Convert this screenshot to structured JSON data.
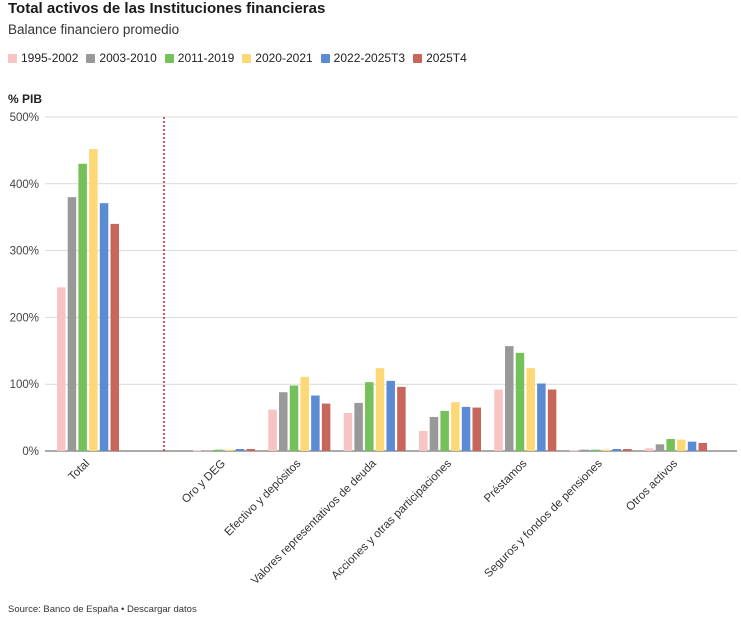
{
  "header": {
    "title": "Total activos de las Instituciones financieras",
    "subtitle": "Balance financiero promedio"
  },
  "footer": {
    "source_label": "Source:",
    "source_value": "Banco de España",
    "separator": "•",
    "download_link": "Descargar datos"
  },
  "colors": {
    "1995-2002": "#f7c3c3",
    "2003-2010": "#999999",
    "2011-2019": "#74c05a",
    "2020-2021": "#fcd877",
    "2022-2025T3": "#5a8bd3",
    "2025T4": "#c8665c",
    "divider": "#cc2222"
  },
  "chart_data": {
    "type": "bar",
    "title": "Total activos de las Instituciones financieras",
    "subtitle": "Balance financiero promedio",
    "ylabel": "% PIB",
    "ylim": [
      0,
      500
    ],
    "yticks": [
      "0%",
      "100%",
      "200%",
      "300%",
      "400%",
      "500%"
    ],
    "grid": true,
    "legend_position": "top-left",
    "categories": [
      "Total",
      "Oro y DEG",
      "Efectivo y depósitos",
      "Valores representativos de deuda",
      "Acciones y otras participaciones",
      "Préstamos",
      "Seguros y fondos de pensiones",
      "Otros activos"
    ],
    "series": [
      {
        "name": "1995-2002",
        "values": [
          245,
          1,
          62,
          57,
          30,
          92,
          1,
          4
        ]
      },
      {
        "name": "2003-2010",
        "values": [
          380,
          1,
          88,
          72,
          51,
          157,
          2,
          10
        ]
      },
      {
        "name": "2011-2019",
        "values": [
          430,
          2,
          98,
          103,
          60,
          147,
          2,
          18
        ]
      },
      {
        "name": "2020-2021",
        "values": [
          452,
          2,
          111,
          124,
          73,
          124,
          2,
          17
        ]
      },
      {
        "name": "2022-2025T3",
        "values": [
          371,
          3,
          83,
          105,
          66,
          101,
          3,
          14
        ]
      },
      {
        "name": "2025T4",
        "values": [
          340,
          3,
          71,
          96,
          65,
          92,
          3,
          12
        ]
      }
    ]
  }
}
